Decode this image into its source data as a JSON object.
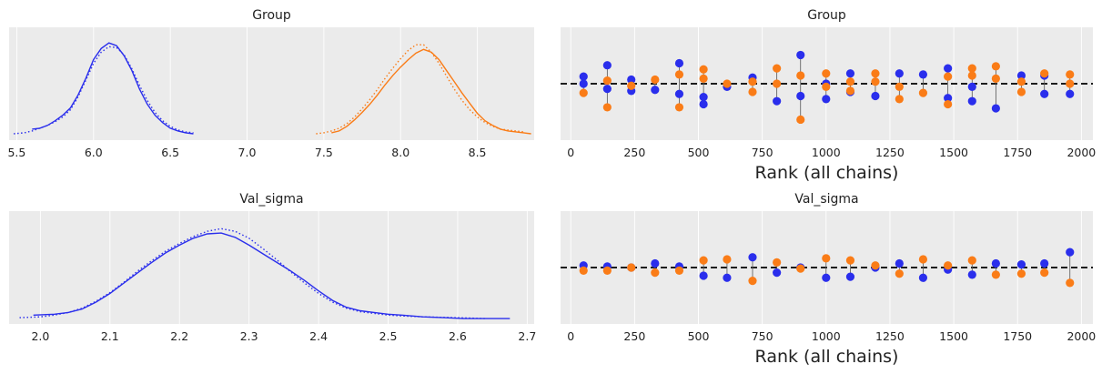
{
  "colors": {
    "chain1": "#2a2eec",
    "chain2": "#fa7c17",
    "panel": "#ebebeb",
    "refline": "#000000"
  },
  "chart_data": [
    {
      "type": "line",
      "kind": "kde",
      "title": "Group",
      "xlabel": "",
      "xlim": [
        5.45,
        8.87
      ],
      "xticks": [
        5.5,
        6.0,
        6.5,
        7.0,
        7.5,
        8.0,
        8.5
      ],
      "xtick_labels": [
        "5.5",
        "6.0",
        "6.5",
        "7.0",
        "7.5",
        "8.0",
        "8.5"
      ],
      "grid": true,
      "series": [
        {
          "group": 1,
          "chain": 1,
          "style": "solid",
          "color": "#2a2eec",
          "x": [
            5.6,
            5.65,
            5.7,
            5.75,
            5.8,
            5.85,
            5.9,
            5.95,
            6.0,
            6.05,
            6.1,
            6.15,
            6.2,
            6.25,
            6.3,
            6.35,
            6.4,
            6.45,
            6.5,
            6.55,
            6.6,
            6.65
          ],
          "y": [
            0.07,
            0.08,
            0.11,
            0.16,
            0.22,
            0.3,
            0.44,
            0.62,
            0.82,
            0.94,
            1.0,
            0.97,
            0.86,
            0.7,
            0.5,
            0.34,
            0.22,
            0.14,
            0.08,
            0.05,
            0.03,
            0.02
          ]
        },
        {
          "group": 1,
          "chain": 2,
          "style": "dotted",
          "color": "#2a2eec",
          "x": [
            5.48,
            5.55,
            5.6,
            5.65,
            5.7,
            5.75,
            5.8,
            5.85,
            5.9,
            5.95,
            6.0,
            6.05,
            6.1,
            6.15,
            6.2,
            6.25,
            6.3,
            6.35,
            6.4,
            6.45,
            6.5,
            6.55,
            6.6,
            6.65
          ],
          "y": [
            0.02,
            0.03,
            0.05,
            0.08,
            0.11,
            0.15,
            0.2,
            0.28,
            0.42,
            0.6,
            0.78,
            0.9,
            0.96,
            0.95,
            0.87,
            0.72,
            0.54,
            0.38,
            0.25,
            0.16,
            0.1,
            0.06,
            0.04,
            0.03
          ]
        },
        {
          "group": 2,
          "chain": 1,
          "style": "solid",
          "color": "#fa7c17",
          "x": [
            7.55,
            7.6,
            7.65,
            7.7,
            7.75,
            7.8,
            7.85,
            7.9,
            7.95,
            8.0,
            8.05,
            8.1,
            8.15,
            8.2,
            8.25,
            8.3,
            8.35,
            8.4,
            8.45,
            8.5,
            8.55,
            8.6,
            8.65,
            8.7,
            8.75,
            8.8,
            8.85
          ],
          "y": [
            0.03,
            0.05,
            0.1,
            0.17,
            0.25,
            0.34,
            0.44,
            0.55,
            0.65,
            0.74,
            0.82,
            0.89,
            0.93,
            0.9,
            0.82,
            0.7,
            0.58,
            0.46,
            0.35,
            0.24,
            0.16,
            0.11,
            0.07,
            0.05,
            0.04,
            0.03,
            0.02
          ]
        },
        {
          "group": 2,
          "chain": 2,
          "style": "dotted",
          "color": "#fa7c17",
          "x": [
            7.45,
            7.5,
            7.55,
            7.6,
            7.65,
            7.7,
            7.75,
            7.8,
            7.85,
            7.9,
            7.95,
            8.0,
            8.05,
            8.1,
            8.15,
            8.2,
            8.25,
            8.3,
            8.35,
            8.4,
            8.45,
            8.5,
            8.55,
            8.6,
            8.65,
            8.7,
            8.75,
            8.8
          ],
          "y": [
            0.02,
            0.03,
            0.05,
            0.08,
            0.13,
            0.2,
            0.29,
            0.39,
            0.5,
            0.62,
            0.73,
            0.83,
            0.92,
            0.98,
            0.98,
            0.9,
            0.78,
            0.64,
            0.5,
            0.38,
            0.28,
            0.2,
            0.14,
            0.1,
            0.07,
            0.06,
            0.05,
            0.04
          ]
        }
      ]
    },
    {
      "type": "scatter",
      "kind": "rank",
      "title": "Group",
      "xlabel": "Rank (all chains)",
      "xlim": [
        -40,
        2045
      ],
      "xticks": [
        0,
        250,
        500,
        750,
        1000,
        1250,
        1500,
        1750,
        2000
      ],
      "xtick_labels": [
        "0",
        "250",
        "500",
        "750",
        "1000",
        "1250",
        "1500",
        "1750",
        "2000"
      ],
      "grid": true,
      "bins": [
        50,
        143,
        237,
        330,
        425,
        520,
        612,
        712,
        807,
        900,
        1000,
        1095,
        1193,
        1287,
        1380,
        1477,
        1572,
        1665,
        1765,
        1855,
        1955
      ],
      "series": [
        {
          "chain": 1,
          "color": "#2a2eec",
          "points": [
            [
              50,
              0.07
            ],
            [
              50,
              0.0
            ],
            [
              143,
              0.18
            ],
            [
              143,
              -0.05
            ],
            [
              237,
              0.04
            ],
            [
              237,
              -0.07
            ],
            [
              330,
              -0.06
            ],
            [
              425,
              0.2
            ],
            [
              425,
              -0.1
            ],
            [
              520,
              -0.13
            ],
            [
              520,
              -0.2
            ],
            [
              612,
              -0.03
            ],
            [
              712,
              0.06
            ],
            [
              807,
              -0.17
            ],
            [
              900,
              0.28
            ],
            [
              900,
              -0.12
            ],
            [
              1000,
              0.0
            ],
            [
              1000,
              -0.15
            ],
            [
              1095,
              0.1
            ],
            [
              1095,
              -0.08
            ],
            [
              1193,
              -0.12
            ],
            [
              1287,
              0.1
            ],
            [
              1380,
              0.09
            ],
            [
              1477,
              0.15
            ],
            [
              1477,
              -0.14
            ],
            [
              1572,
              -0.03
            ],
            [
              1572,
              -0.17
            ],
            [
              1665,
              -0.24
            ],
            [
              1765,
              0.08
            ],
            [
              1855,
              -0.1
            ],
            [
              1855,
              0.08
            ],
            [
              1955,
              -0.1
            ]
          ]
        },
        {
          "chain": 2,
          "color": "#fa7c17",
          "points": [
            [
              50,
              -0.09
            ],
            [
              143,
              0.03
            ],
            [
              143,
              -0.23
            ],
            [
              237,
              -0.02
            ],
            [
              330,
              0.04
            ],
            [
              425,
              -0.23
            ],
            [
              425,
              0.09
            ],
            [
              520,
              0.14
            ],
            [
              520,
              0.05
            ],
            [
              612,
              0.0
            ],
            [
              712,
              -0.08
            ],
            [
              712,
              0.02
            ],
            [
              807,
              0.15
            ],
            [
              807,
              0.0
            ],
            [
              900,
              -0.35
            ],
            [
              900,
              0.08
            ],
            [
              1000,
              0.1
            ],
            [
              1000,
              -0.03
            ],
            [
              1095,
              0.02
            ],
            [
              1095,
              -0.07
            ],
            [
              1193,
              0.1
            ],
            [
              1193,
              0.02
            ],
            [
              1287,
              -0.15
            ],
            [
              1287,
              -0.03
            ],
            [
              1380,
              -0.09
            ],
            [
              1477,
              -0.2
            ],
            [
              1477,
              0.07
            ],
            [
              1572,
              0.15
            ],
            [
              1572,
              0.08
            ],
            [
              1665,
              0.17
            ],
            [
              1665,
              0.05
            ],
            [
              1765,
              -0.08
            ],
            [
              1765,
              0.02
            ],
            [
              1855,
              0.1
            ],
            [
              1955,
              0.09
            ],
            [
              1955,
              0.0
            ]
          ]
        }
      ]
    },
    {
      "type": "line",
      "kind": "kde",
      "title": "Val_sigma",
      "xlabel": "",
      "xlim": [
        1.955,
        2.71
      ],
      "xticks": [
        2.0,
        2.1,
        2.2,
        2.3,
        2.4,
        2.5,
        2.6,
        2.7
      ],
      "xtick_labels": [
        "2.0",
        "2.1",
        "2.2",
        "2.3",
        "2.4",
        "2.5",
        "2.6",
        "2.7"
      ],
      "grid": true,
      "series": [
        {
          "chain": 1,
          "style": "solid",
          "color": "#2a2eec",
          "x": [
            1.99,
            2.02,
            2.04,
            2.06,
            2.08,
            2.1,
            2.12,
            2.14,
            2.16,
            2.18,
            2.2,
            2.22,
            2.24,
            2.26,
            2.28,
            2.3,
            2.32,
            2.34,
            2.36,
            2.38,
            2.4,
            2.42,
            2.44,
            2.46,
            2.48,
            2.5,
            2.52,
            2.55,
            2.58,
            2.61,
            2.64,
            2.675
          ],
          "y": [
            0.05,
            0.06,
            0.08,
            0.12,
            0.2,
            0.3,
            0.42,
            0.54,
            0.66,
            0.77,
            0.86,
            0.94,
            0.99,
            1.0,
            0.95,
            0.86,
            0.76,
            0.66,
            0.56,
            0.45,
            0.33,
            0.22,
            0.14,
            0.1,
            0.08,
            0.06,
            0.05,
            0.03,
            0.02,
            0.01,
            0.01,
            0.01
          ]
        },
        {
          "chain": 2,
          "style": "dotted",
          "color": "#2a2eec",
          "x": [
            1.97,
            2.0,
            2.02,
            2.04,
            2.06,
            2.08,
            2.1,
            2.12,
            2.14,
            2.16,
            2.18,
            2.2,
            2.22,
            2.24,
            2.26,
            2.28,
            2.3,
            2.32,
            2.34,
            2.36,
            2.38,
            2.4,
            2.42,
            2.44,
            2.46,
            2.48,
            2.5,
            2.52,
            2.55,
            2.6,
            2.64
          ],
          "y": [
            0.02,
            0.03,
            0.05,
            0.08,
            0.13,
            0.21,
            0.31,
            0.43,
            0.56,
            0.68,
            0.79,
            0.88,
            0.96,
            1.02,
            1.05,
            1.02,
            0.94,
            0.82,
            0.69,
            0.55,
            0.42,
            0.3,
            0.2,
            0.13,
            0.09,
            0.07,
            0.05,
            0.04,
            0.03,
            0.02,
            0.01
          ]
        }
      ]
    },
    {
      "type": "scatter",
      "kind": "rank",
      "title": "Val_sigma",
      "xlabel": "Rank (all chains)",
      "xlim": [
        -40,
        2045
      ],
      "xticks": [
        0,
        250,
        500,
        750,
        1000,
        1250,
        1500,
        1750,
        2000
      ],
      "xtick_labels": [
        "0",
        "250",
        "500",
        "750",
        "1000",
        "1250",
        "1500",
        "1750",
        "2000"
      ],
      "grid": true,
      "bins": [
        50,
        143,
        237,
        330,
        425,
        520,
        612,
        712,
        807,
        900,
        1000,
        1095,
        1193,
        1287,
        1380,
        1477,
        1572,
        1665,
        1765,
        1855,
        1955
      ],
      "series": [
        {
          "chain": 1,
          "color": "#2a2eec",
          "points": [
            [
              50,
              0.02
            ],
            [
              143,
              0.01
            ],
            [
              237,
              0.0
            ],
            [
              330,
              0.04
            ],
            [
              425,
              0.01
            ],
            [
              520,
              -0.08
            ],
            [
              612,
              -0.1
            ],
            [
              712,
              0.1
            ],
            [
              807,
              -0.05
            ],
            [
              900,
              0.0
            ],
            [
              1000,
              -0.1
            ],
            [
              1095,
              -0.09
            ],
            [
              1193,
              0.0
            ],
            [
              1287,
              0.04
            ],
            [
              1380,
              -0.1
            ],
            [
              1477,
              -0.02
            ],
            [
              1572,
              -0.07
            ],
            [
              1665,
              0.04
            ],
            [
              1765,
              0.03
            ],
            [
              1855,
              0.04
            ],
            [
              1955,
              0.15
            ]
          ]
        },
        {
          "chain": 2,
          "color": "#fa7c17",
          "points": [
            [
              50,
              -0.03
            ],
            [
              143,
              -0.03
            ],
            [
              237,
              0.0
            ],
            [
              330,
              -0.05
            ],
            [
              425,
              -0.03
            ],
            [
              520,
              0.07
            ],
            [
              612,
              0.08
            ],
            [
              712,
              -0.13
            ],
            [
              807,
              0.05
            ],
            [
              900,
              -0.01
            ],
            [
              1000,
              0.09
            ],
            [
              1095,
              0.07
            ],
            [
              1193,
              0.02
            ],
            [
              1287,
              -0.06
            ],
            [
              1380,
              0.08
            ],
            [
              1477,
              0.02
            ],
            [
              1572,
              0.07
            ],
            [
              1665,
              -0.07
            ],
            [
              1765,
              -0.06
            ],
            [
              1855,
              -0.05
            ],
            [
              1955,
              -0.15
            ]
          ]
        }
      ]
    }
  ]
}
